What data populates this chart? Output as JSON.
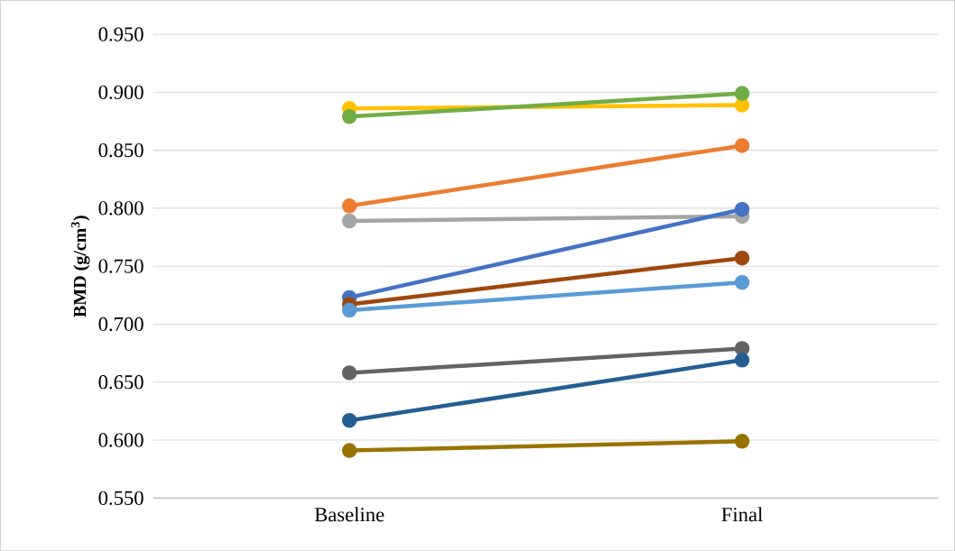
{
  "chart_data": {
    "type": "line",
    "ylabel": "BMD (g/cm$^{3}$)",
    "categories": [
      "Baseline",
      "Final"
    ],
    "series": [
      {
        "color": "#ffc000",
        "values": [
          0.886,
          0.889
        ]
      },
      {
        "color": "#70ad47",
        "values": [
          0.879,
          0.899
        ]
      },
      {
        "color": "#ed7d31",
        "values": [
          0.802,
          0.854
        ]
      },
      {
        "color": "#a5a5a5",
        "values": [
          0.789,
          0.793
        ]
      },
      {
        "color": "#4472c4",
        "values": [
          0.723,
          0.799
        ]
      },
      {
        "color": "#9e480e",
        "values": [
          0.717,
          0.757
        ]
      },
      {
        "color": "#5b9bd5",
        "values": [
          0.712,
          0.736
        ]
      },
      {
        "color": "#636363",
        "values": [
          0.658,
          0.679
        ]
      },
      {
        "color": "#255e91",
        "values": [
          0.617,
          0.669
        ]
      },
      {
        "color": "#997300",
        "values": [
          0.591,
          0.599
        ]
      }
    ],
    "ylim": [
      0.55,
      0.95
    ],
    "yticks": [
      {
        "value": 0.55,
        "label": "0.550"
      },
      {
        "value": 0.6,
        "label": "0.600"
      },
      {
        "value": 0.65,
        "label": "0.650"
      },
      {
        "value": 0.7,
        "label": "0.700"
      },
      {
        "value": 0.75,
        "label": "0.750"
      },
      {
        "value": 0.8,
        "label": "0.800"
      },
      {
        "value": 0.85,
        "label": "0.850"
      },
      {
        "value": 0.9,
        "label": "0.900"
      },
      {
        "value": 0.95,
        "label": "0.950"
      }
    ],
    "grid": "y",
    "marker": "circle",
    "line_style": "solid"
  }
}
